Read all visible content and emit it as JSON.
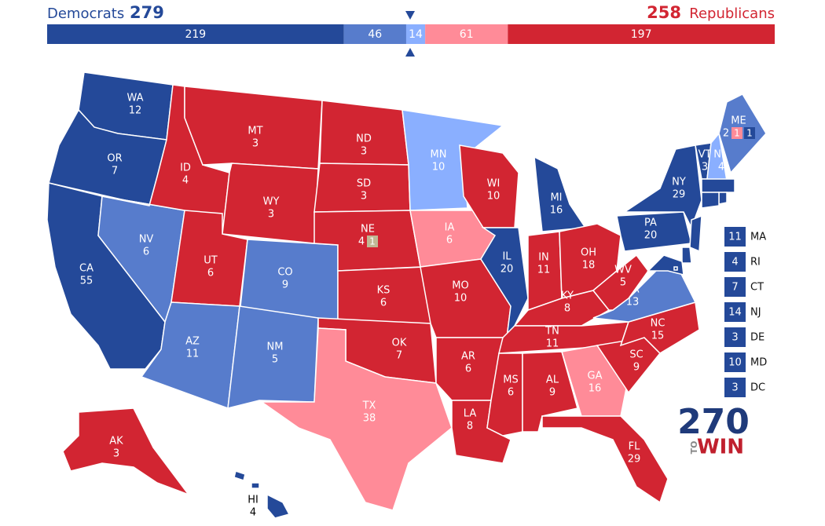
{
  "header": {
    "dem_label": "Democrats",
    "dem_total": 279,
    "rep_total": 258,
    "rep_label": "Republicans"
  },
  "bar": [
    {
      "value": 219,
      "color": "#244999"
    },
    {
      "value": 46,
      "color": "#577ccc"
    },
    {
      "value": 14,
      "color": "#8aafff"
    },
    {
      "value": 61,
      "color": "#ff8b98"
    },
    {
      "value": 197,
      "color": "#d22532"
    }
  ],
  "states": [
    {
      "abbr": "WA",
      "votes": 12,
      "color": "#244999"
    },
    {
      "abbr": "OR",
      "votes": 7,
      "color": "#244999"
    },
    {
      "abbr": "CA",
      "votes": 55,
      "color": "#244999"
    },
    {
      "abbr": "NV",
      "votes": 6,
      "color": "#577ccc"
    },
    {
      "abbr": "ID",
      "votes": 4,
      "color": "#d22532"
    },
    {
      "abbr": "MT",
      "votes": 3,
      "color": "#d22532"
    },
    {
      "abbr": "WY",
      "votes": 3,
      "color": "#d22532"
    },
    {
      "abbr": "UT",
      "votes": 6,
      "color": "#d22532"
    },
    {
      "abbr": "CO",
      "votes": 9,
      "color": "#577ccc"
    },
    {
      "abbr": "AZ",
      "votes": 11,
      "color": "#577ccc"
    },
    {
      "abbr": "NM",
      "votes": 5,
      "color": "#577ccc"
    },
    {
      "abbr": "ND",
      "votes": 3,
      "color": "#d22532"
    },
    {
      "abbr": "SD",
      "votes": 3,
      "color": "#d22532"
    },
    {
      "abbr": "NE",
      "votes": 4,
      "color": "#d22532",
      "districts": [
        {
          "votes": 1,
          "color": "#c0b894"
        }
      ]
    },
    {
      "abbr": "KS",
      "votes": 6,
      "color": "#d22532"
    },
    {
      "abbr": "OK",
      "votes": 7,
      "color": "#d22532"
    },
    {
      "abbr": "TX",
      "votes": 38,
      "color": "#ff8b98"
    },
    {
      "abbr": "MN",
      "votes": 10,
      "color": "#8aafff"
    },
    {
      "abbr": "IA",
      "votes": 6,
      "color": "#ff8b98"
    },
    {
      "abbr": "MO",
      "votes": 10,
      "color": "#d22532"
    },
    {
      "abbr": "AR",
      "votes": 6,
      "color": "#d22532"
    },
    {
      "abbr": "LA",
      "votes": 8,
      "color": "#d22532"
    },
    {
      "abbr": "WI",
      "votes": 10,
      "color": "#d22532"
    },
    {
      "abbr": "IL",
      "votes": 20,
      "color": "#244999"
    },
    {
      "abbr": "MI",
      "votes": 16,
      "color": "#244999"
    },
    {
      "abbr": "IN",
      "votes": 11,
      "color": "#d22532"
    },
    {
      "abbr": "OH",
      "votes": 18,
      "color": "#d22532"
    },
    {
      "abbr": "KY",
      "votes": 8,
      "color": "#d22532"
    },
    {
      "abbr": "TN",
      "votes": 11,
      "color": "#d22532"
    },
    {
      "abbr": "MS",
      "votes": 6,
      "color": "#d22532"
    },
    {
      "abbr": "AL",
      "votes": 9,
      "color": "#d22532"
    },
    {
      "abbr": "GA",
      "votes": 16,
      "color": "#ff8b98"
    },
    {
      "abbr": "FL",
      "votes": 29,
      "color": "#d22532"
    },
    {
      "abbr": "SC",
      "votes": 9,
      "color": "#d22532"
    },
    {
      "abbr": "NC",
      "votes": 15,
      "color": "#d22532"
    },
    {
      "abbr": "VA",
      "votes": 13,
      "color": "#577ccc"
    },
    {
      "abbr": "WV",
      "votes": 5,
      "color": "#d22532"
    },
    {
      "abbr": "PA",
      "votes": 20,
      "color": "#244999"
    },
    {
      "abbr": "NY",
      "votes": 29,
      "color": "#244999"
    },
    {
      "abbr": "VT",
      "votes": 3,
      "color": "#244999"
    },
    {
      "abbr": "NH",
      "votes": 4,
      "color": "#8aafff"
    },
    {
      "abbr": "ME",
      "votes": 2,
      "color": "#577ccc",
      "districts": [
        {
          "votes": 1,
          "color": "#ff8b98"
        },
        {
          "votes": 1,
          "color": "#244999"
        }
      ]
    },
    {
      "abbr": "AK",
      "votes": 3,
      "color": "#d22532"
    },
    {
      "abbr": "HI",
      "votes": 4,
      "color": "#244999"
    }
  ],
  "small_states": [
    {
      "abbr": "MA",
      "votes": 11,
      "color": "#244999"
    },
    {
      "abbr": "RI",
      "votes": 4,
      "color": "#244999"
    },
    {
      "abbr": "CT",
      "votes": 7,
      "color": "#244999"
    },
    {
      "abbr": "NJ",
      "votes": 14,
      "color": "#244999"
    },
    {
      "abbr": "DE",
      "votes": 3,
      "color": "#244999"
    },
    {
      "abbr": "MD",
      "votes": 10,
      "color": "#244999"
    },
    {
      "abbr": "DC",
      "votes": 3,
      "color": "#244999"
    }
  ],
  "logo": {
    "number": "270",
    "to": "TO",
    "win": "WIN"
  }
}
